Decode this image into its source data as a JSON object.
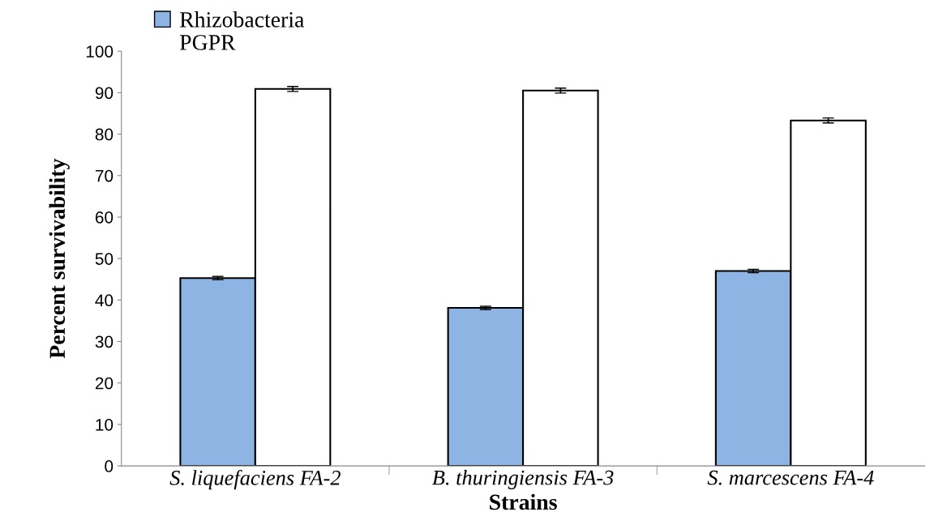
{
  "chart_data": {
    "type": "bar",
    "xlabel": "Strains",
    "ylabel": "Percent survivability",
    "categories": [
      "S. liquefaciens FA-2",
      "B. thuringiensis FA-3",
      "S. marcescens FA-4"
    ],
    "series": [
      {
        "name": "Rhizobacteria",
        "color": "#8eb4e3",
        "values": [
          45.3,
          38.1,
          47.0
        ],
        "errors": [
          0.4,
          0.4,
          0.4
        ]
      },
      {
        "name": "PGPR",
        "color": "#ffffff",
        "values": [
          90.9,
          90.5,
          83.3
        ],
        "errors": [
          0.6,
          0.6,
          0.6
        ]
      }
    ],
    "ylim": [
      0,
      100
    ],
    "yticks": [
      0,
      10,
      20,
      30,
      40,
      50,
      60,
      70,
      80,
      90,
      100
    ],
    "grid": false,
    "legend": "top left"
  }
}
